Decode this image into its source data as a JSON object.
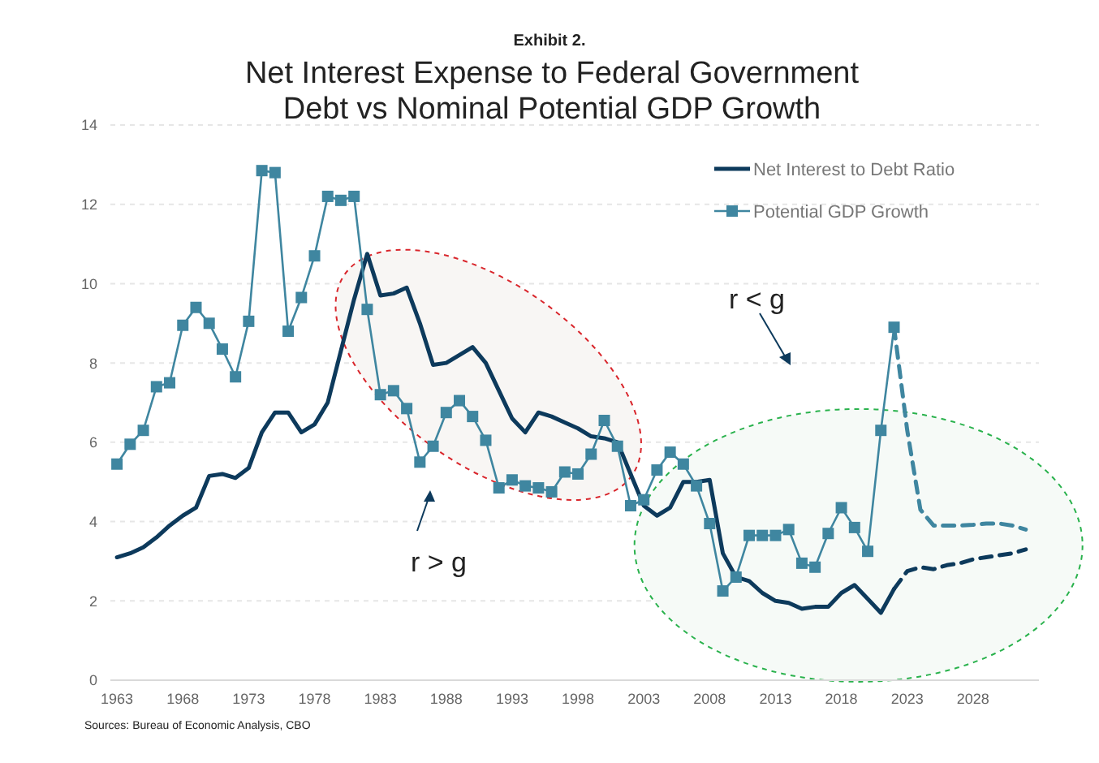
{
  "chart_data": {
    "type": "line",
    "subtitle": "Exhibit 2.",
    "title": "Net Interest Expense to Federal Government Debt vs Nominal Potential GDP Growth",
    "xlim": [
      1962.5,
      2033
    ],
    "xticks": [
      1963,
      1968,
      1973,
      1978,
      1983,
      1988,
      1993,
      1998,
      2003,
      2008,
      2013,
      2018,
      2023,
      2028
    ],
    "ylim": [
      0,
      14
    ],
    "yticks": [
      0,
      2,
      4,
      6,
      8,
      10,
      12,
      14
    ],
    "grid": "y",
    "legend": "top right",
    "series": [
      {
        "name": "Net Interest to Debt Ratio",
        "color": "#0d3a5c",
        "line_style": "solid",
        "marker": "none",
        "x": [
          1963,
          1964,
          1965,
          1966,
          1967,
          1968,
          1969,
          1970,
          1971,
          1972,
          1973,
          1974,
          1975,
          1976,
          1977,
          1978,
          1979,
          1980,
          1981,
          1982,
          1983,
          1984,
          1985,
          1986,
          1987,
          1988,
          1989,
          1990,
          1991,
          1992,
          1993,
          1994,
          1995,
          1996,
          1997,
          1998,
          1999,
          2000,
          2001,
          2002,
          2003,
          2004,
          2005,
          2006,
          2007,
          2008,
          2009,
          2010,
          2011,
          2012,
          2013,
          2014,
          2015,
          2016,
          2017,
          2018,
          2019,
          2020,
          2021,
          2022
        ],
        "values": [
          3.1,
          3.2,
          3.35,
          3.6,
          3.9,
          4.15,
          4.35,
          5.15,
          5.2,
          5.1,
          5.35,
          6.25,
          6.75,
          6.75,
          6.25,
          6.45,
          7.0,
          8.3,
          9.6,
          10.75,
          9.7,
          9.75,
          9.9,
          9.0,
          7.95,
          8.0,
          8.2,
          8.4,
          8.0,
          7.3,
          6.6,
          6.25,
          6.75,
          6.65,
          6.5,
          6.35,
          6.15,
          6.1,
          6.0,
          5.2,
          4.4,
          4.15,
          4.35,
          5.0,
          5.0,
          5.05,
          3.2,
          2.6,
          2.5,
          2.2,
          2.0,
          1.95,
          1.8,
          1.85,
          1.85,
          2.2,
          2.4,
          2.05,
          1.7,
          2.3
        ]
      },
      {
        "name": "Potential GDP Growth",
        "color": "#3f86a0",
        "line_style": "solid",
        "marker": "square",
        "x": [
          1963,
          1964,
          1965,
          1966,
          1967,
          1968,
          1969,
          1970,
          1971,
          1972,
          1973,
          1974,
          1975,
          1976,
          1977,
          1978,
          1979,
          1980,
          1981,
          1982,
          1983,
          1984,
          1985,
          1986,
          1987,
          1988,
          1989,
          1990,
          1991,
          1992,
          1993,
          1994,
          1995,
          1996,
          1997,
          1998,
          1999,
          2000,
          2001,
          2002,
          2003,
          2004,
          2005,
          2006,
          2007,
          2008,
          2009,
          2010,
          2011,
          2012,
          2013,
          2014,
          2015,
          2016,
          2017,
          2018,
          2019,
          2020,
          2021,
          2022
        ],
        "values": [
          5.45,
          5.95,
          6.3,
          7.4,
          7.5,
          8.95,
          9.4,
          9.0,
          8.35,
          7.65,
          9.05,
          12.85,
          12.8,
          8.8,
          9.65,
          10.7,
          12.2,
          12.1,
          12.2,
          9.35,
          7.2,
          7.3,
          6.85,
          5.5,
          5.9,
          6.75,
          7.05,
          6.65,
          6.05,
          4.85,
          5.05,
          4.9,
          4.85,
          4.75,
          5.25,
          5.2,
          5.7,
          6.55,
          5.9,
          4.4,
          4.55,
          5.3,
          5.75,
          5.45,
          4.9,
          3.95,
          2.25,
          2.6,
          3.65,
          3.65,
          3.65,
          3.8,
          2.95,
          2.85,
          3.7,
          4.35,
          3.85,
          3.25,
          6.3,
          8.9
        ]
      },
      {
        "color": "#0d3a5c",
        "line_style": "dashed",
        "marker": "none",
        "x": [
          2022,
          2023,
          2024,
          2025,
          2026,
          2027,
          2028,
          2029,
          2030,
          2031,
          2032
        ],
        "values": [
          2.3,
          2.75,
          2.85,
          2.8,
          2.9,
          2.95,
          3.05,
          3.1,
          3.15,
          3.2,
          3.3
        ]
      },
      {
        "color": "#3f86a0",
        "line_style": "dashed",
        "marker": "none",
        "x": [
          2022,
          2023,
          2024,
          2025,
          2026,
          2027,
          2028,
          2029,
          2030,
          2031,
          2032
        ],
        "values": [
          8.9,
          6.3,
          4.3,
          3.9,
          3.9,
          3.9,
          3.92,
          3.95,
          3.95,
          3.9,
          3.8
        ]
      }
    ],
    "annotations": [
      "r > g",
      "r < g",
      "Sources: Bureau of Economic Analysis, CBO"
    ]
  }
}
